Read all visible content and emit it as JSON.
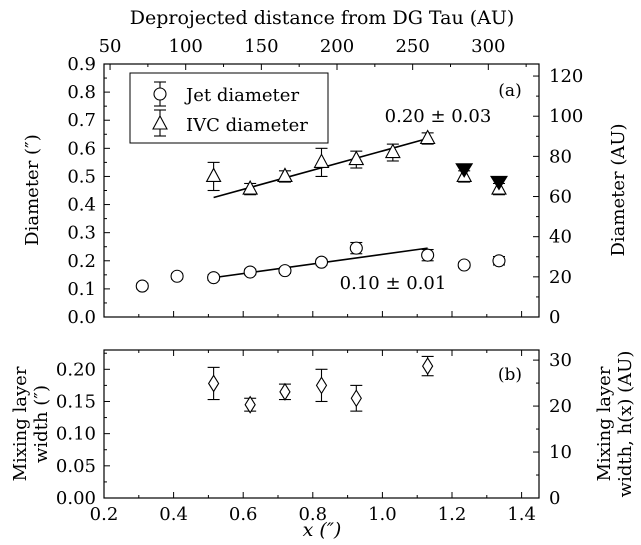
{
  "chart_data": [
    {
      "panel_label": "(a)",
      "type": "scatter",
      "title": "",
      "top_xlabel": "Deprojected distance from DG Tau (AU)",
      "top_ticks": [
        "50",
        "100",
        "150",
        "200",
        "250",
        "300"
      ],
      "top_tick_values": [
        50,
        100,
        150,
        200,
        250,
        300
      ],
      "ylabel": "Diameter (″)",
      "right_ylabel": "Diameter (AU)",
      "xlim": [
        0.2,
        1.45
      ],
      "ylim": [
        0.0,
        0.9
      ],
      "right_ylim": [
        0,
        126
      ],
      "yticks": [
        "0.0",
        "0.1",
        "0.2",
        "0.3",
        "0.4",
        "0.5",
        "0.6",
        "0.7",
        "0.8",
        "0.9"
      ],
      "right_yticks": [
        "0",
        "20",
        "40",
        "60",
        "80",
        "100",
        "120"
      ],
      "legend_position": "top-left",
      "series": [
        {
          "name": "Jet diameter",
          "marker": "circle",
          "points": [
            {
              "x": 0.31,
              "y": 0.11,
              "err": 0.01
            },
            {
              "x": 0.41,
              "y": 0.145,
              "err": 0.01
            },
            {
              "x": 0.515,
              "y": 0.14,
              "err": 0.01
            },
            {
              "x": 0.62,
              "y": 0.16,
              "err": 0.01
            },
            {
              "x": 0.72,
              "y": 0.165,
              "err": 0.01
            },
            {
              "x": 0.825,
              "y": 0.195,
              "err": 0.01
            },
            {
              "x": 0.925,
              "y": 0.245,
              "err": 0.02
            },
            {
              "x": 1.13,
              "y": 0.22,
              "err": 0.02
            },
            {
              "x": 1.235,
              "y": 0.185,
              "err": 0.01
            },
            {
              "x": 1.335,
              "y": 0.2,
              "err": 0.015
            }
          ]
        },
        {
          "name": "IVC diameter",
          "marker": "triangle",
          "points": [
            {
              "x": 0.515,
              "y": 0.5,
              "err": 0.05
            },
            {
              "x": 0.62,
              "y": 0.455,
              "err": 0.02
            },
            {
              "x": 0.72,
              "y": 0.5,
              "err": 0.02
            },
            {
              "x": 0.825,
              "y": 0.55,
              "err": 0.05
            },
            {
              "x": 0.925,
              "y": 0.56,
              "err": 0.03
            },
            {
              "x": 1.03,
              "y": 0.585,
              "err": 0.03
            },
            {
              "x": 1.13,
              "y": 0.635,
              "err": 0.02
            },
            {
              "x": 1.235,
              "y": 0.5,
              "err": 0.02
            },
            {
              "x": 1.335,
              "y": 0.455,
              "err": 0.02
            }
          ],
          "upper_limits": [
            {
              "x": 1.235,
              "y": 0.52
            },
            {
              "x": 1.335,
              "y": 0.475
            }
          ]
        }
      ],
      "fits": [
        {
          "label": "0.20 ± 0.03",
          "x0": 0.515,
          "y0": 0.425,
          "x1": 1.13,
          "y1": 0.635
        },
        {
          "label": "0.10 ± 0.01",
          "x0": 0.515,
          "y0": 0.14,
          "x1": 1.13,
          "y1": 0.245
        }
      ]
    },
    {
      "panel_label": "(b)",
      "type": "scatter",
      "title": "",
      "xlabel": "x (″)",
      "ylabel": "Mixing layer width (″)",
      "ylabel_lines": [
        "Mixing layer",
        "width (″)"
      ],
      "right_ylabel": "Mixing layer width, h(x) (AU)",
      "right_ylabel_lines": [
        "Mixing layer",
        "width, h(x) (AU)"
      ],
      "xlim": [
        0.2,
        1.45
      ],
      "ylim": [
        0.0,
        0.23
      ],
      "right_ylim": [
        0,
        32.2
      ],
      "xticks": [
        "0.2",
        "0.4",
        "0.6",
        "0.8",
        "1.0",
        "1.2",
        "1.4"
      ],
      "yticks": [
        "0.00",
        "0.05",
        "0.10",
        "0.15",
        "0.20"
      ],
      "right_yticks": [
        "0",
        "10",
        "20",
        "30"
      ],
      "series": [
        {
          "marker": "diamond",
          "points": [
            {
              "x": 0.515,
              "y": 0.178,
              "err": 0.025
            },
            {
              "x": 0.62,
              "y": 0.145,
              "err": 0.01
            },
            {
              "x": 0.72,
              "y": 0.165,
              "err": 0.012
            },
            {
              "x": 0.825,
              "y": 0.175,
              "err": 0.025
            },
            {
              "x": 0.925,
              "y": 0.155,
              "err": 0.02
            },
            {
              "x": 1.13,
              "y": 0.205,
              "err": 0.015
            }
          ]
        }
      ]
    }
  ]
}
